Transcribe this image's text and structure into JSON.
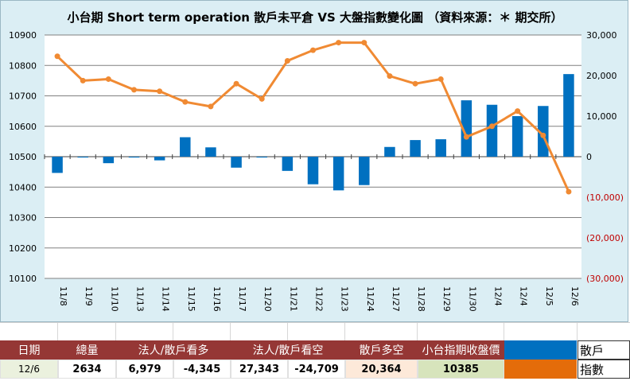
{
  "chart_data": {
    "type": "bar+line",
    "title": "小台期 Short term operation 散戶未平倉 VS 大盤指數變化圖 （資料來源：＊ 期交所）",
    "categories": [
      "11/8",
      "11/9",
      "11/10",
      "11/13",
      "11/14",
      "11/15",
      "11/16",
      "11/17",
      "11/20",
      "11/21",
      "11/22",
      "11/23",
      "11/24",
      "11/27",
      "11/28",
      "11/29",
      "11/30",
      "12/4",
      "12/4",
      "12/5",
      "12/6"
    ],
    "series": [
      {
        "name": "散戶",
        "type": "bar",
        "axis": "right",
        "color": "#0070c0",
        "values": [
          -4000,
          -200,
          -1600,
          -200,
          -900,
          4800,
          2300,
          -2700,
          -200,
          -3500,
          -6800,
          -8300,
          -7000,
          2400,
          4100,
          4300,
          13900,
          12800,
          10000,
          12500,
          20364
        ]
      },
      {
        "name": "指數",
        "type": "line",
        "axis": "left",
        "color": "#f08a33",
        "values": [
          10830,
          10750,
          10755,
          10720,
          10715,
          10680,
          10665,
          10740,
          10690,
          10815,
          10850,
          10875,
          10875,
          10765,
          10740,
          10755,
          10565,
          10600,
          10650,
          10570,
          10385
        ]
      }
    ],
    "y_left": {
      "min": 10100,
      "max": 10900,
      "step": 100,
      "ticks": [
        "10900",
        "10800",
        "10700",
        "10600",
        "10500",
        "10400",
        "10300",
        "10200",
        "10100"
      ]
    },
    "y_right": {
      "min": -30000,
      "max": 30000,
      "step": 10000,
      "ticks": [
        "30,000",
        "20,000",
        "10,000",
        "0",
        "(10,000)",
        "(20,000)",
        "(30,000)"
      ]
    }
  },
  "table": {
    "headers": [
      "日期",
      "總量",
      "法人/散戶看多",
      "法人/散戶看空",
      "散戶多空",
      "小台指期收盤價"
    ],
    "values": [
      "12/6",
      "2634",
      "6,979",
      "-4,345",
      "27,343",
      "-24,709",
      "20,364",
      "10385"
    ]
  },
  "legend": [
    {
      "label": "散戶",
      "color": "#0070c0"
    },
    {
      "label": "指數",
      "color": "#e46c0a"
    }
  ]
}
